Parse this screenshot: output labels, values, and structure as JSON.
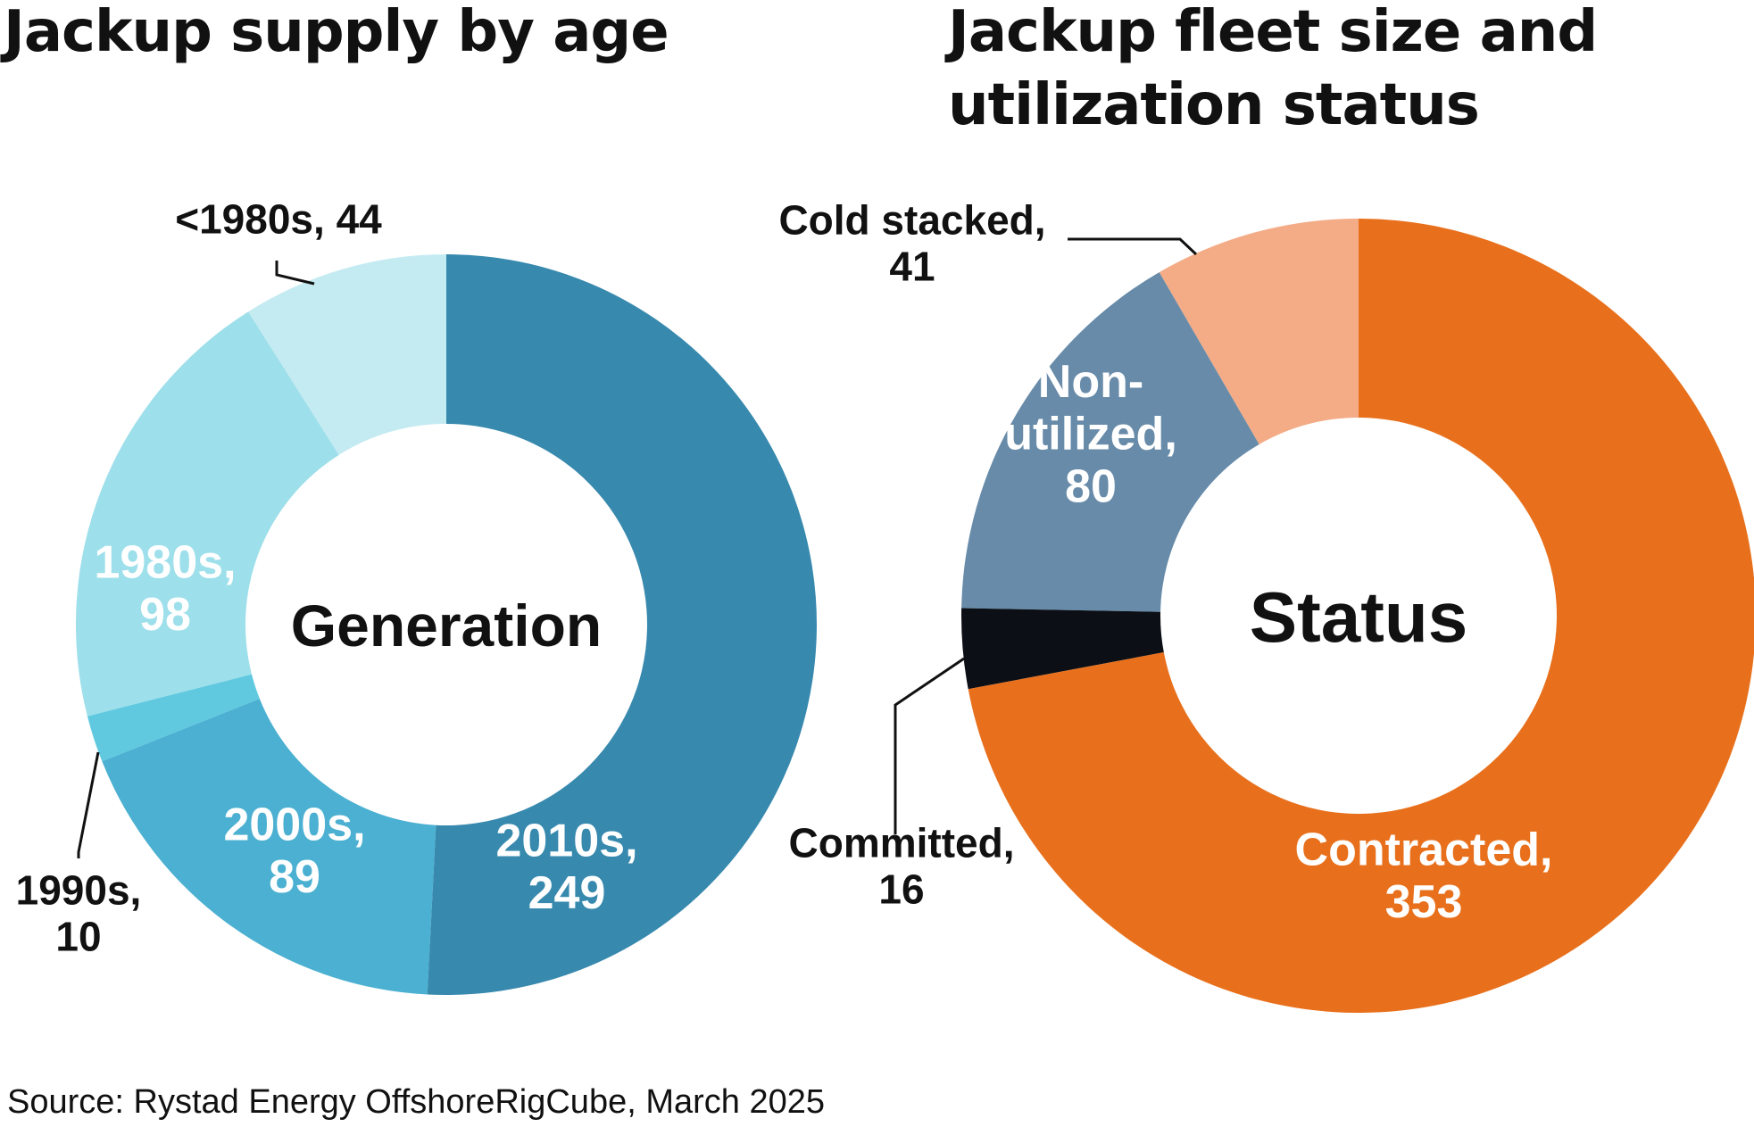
{
  "colors": {
    "generation": [
      "#c5ebf2",
      "#9ddfea",
      "#60c9e0",
      "#4bb0d1",
      "#3789ae"
    ],
    "status": [
      "#f4ac87",
      "#678ba9",
      "#0c1016",
      "#e8701c"
    ],
    "label_dark": "#111111",
    "label_light": "#ffffff"
  },
  "chart_data": [
    {
      "type": "pie",
      "title": "Jackup supply by age",
      "center_label": "Generation",
      "categories": [
        "<1980s",
        "1980s",
        "1990s",
        "2000s",
        "2010s"
      ],
      "values": [
        44,
        98,
        10,
        89,
        249
      ],
      "labels": [
        {
          "lines": [
            "<1980s, 44"
          ],
          "color": "#111111"
        },
        {
          "lines": [
            "1980s,",
            "98"
          ],
          "color": "#ffffff"
        },
        {
          "lines": [
            "1990s,",
            "10"
          ],
          "color": "#111111"
        },
        {
          "lines": [
            "2000s,",
            "89"
          ],
          "color": "#ffffff"
        },
        {
          "lines": [
            "2010s,",
            "249"
          ],
          "color": "#ffffff"
        }
      ]
    },
    {
      "type": "pie",
      "title": "Jackup fleet size and utilization status",
      "center_label": "Status",
      "categories": [
        "Cold stacked",
        "Non-utilized",
        "Committed",
        "Contracted"
      ],
      "values": [
        41,
        80,
        16,
        353
      ],
      "labels": [
        {
          "lines": [
            "Cold stacked,",
            "41"
          ],
          "color": "#111111"
        },
        {
          "lines": [
            "Non-",
            "utilized,",
            "80"
          ],
          "color": "#ffffff"
        },
        {
          "lines": [
            "Committed,",
            "16"
          ],
          "color": "#111111"
        },
        {
          "lines": [
            "Contracted,",
            "353"
          ],
          "color": "#ffffff"
        }
      ]
    }
  ],
  "source": "Source:  Rystad Energy OffshoreRigCube, March 2025"
}
